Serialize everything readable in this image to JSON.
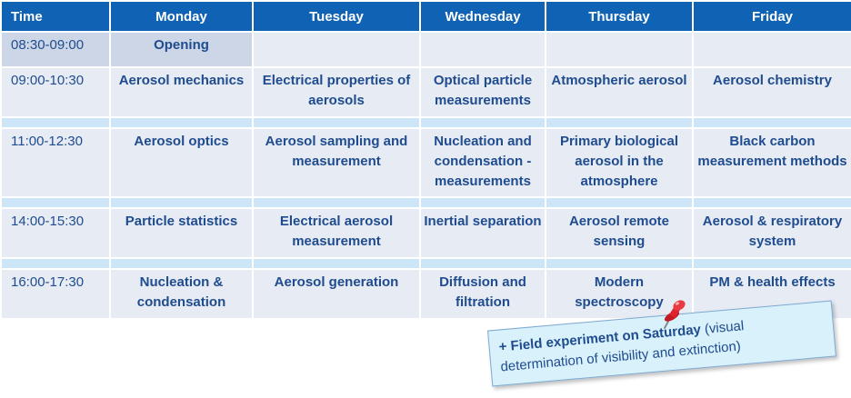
{
  "header": {
    "time": "Time",
    "days": [
      "Monday",
      "Tuesday",
      "Wednesday",
      "Thursday",
      "Friday"
    ]
  },
  "rows": {
    "opening": {
      "time": "08:30-09:00",
      "monday": "Opening"
    },
    "s1": {
      "time": "09:00-10:30",
      "monday": "Aerosol mechanics",
      "tuesday": "Electrical properties of aerosols",
      "wednesday": "Optical particle measurements",
      "thursday": "Atmospheric aerosol",
      "friday": "Aerosol chemistry"
    },
    "s2": {
      "time": "11:00-12:30",
      "monday": "Aerosol optics",
      "tuesday": "Aerosol sampling and measurement",
      "wednesday": "Nucleation and condensation - measurements",
      "thursday": "Primary biological aerosol in the atmosphere",
      "friday": "Black carbon measurement methods"
    },
    "s3": {
      "time": "14:00-15:30",
      "monday": "Particle statistics",
      "tuesday": "Electrical aerosol measurement",
      "wednesday": "Inertial separation",
      "thursday": "Aerosol remote sensing",
      "friday": "Aerosol & respiratory system"
    },
    "s4": {
      "time": "16:00-17:30",
      "monday": "Nucleation & condensation",
      "tuesday": "Aerosol generation",
      "wednesday": "Diffusion and filtration",
      "thursday": "Modern spectroscopy",
      "friday": "PM & health effects"
    }
  },
  "note": {
    "lead": "+ Field experiment on Saturday",
    "rest": " (visual determination of visibility and extinction)"
  },
  "colors": {
    "header_bg": "#0f62b4",
    "cell_bg": "#e7ebf3",
    "break_bg": "#cde6f7",
    "text": "#1f4c8e",
    "pin": "#e0242e"
  },
  "icons": {
    "pin": "pushpin-icon"
  }
}
